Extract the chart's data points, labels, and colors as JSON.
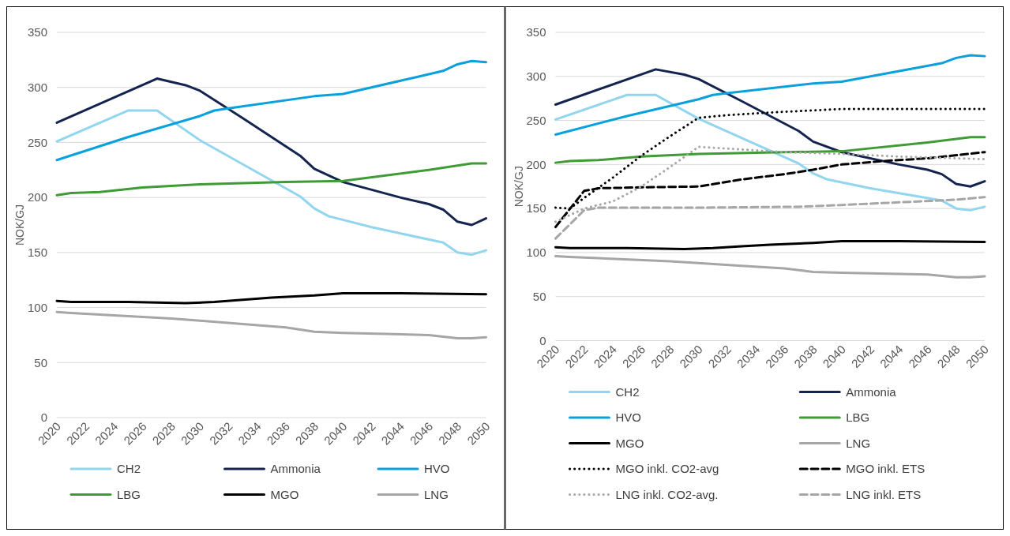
{
  "chart_data": [
    {
      "type": "line",
      "ylabel": "NOK/GJ",
      "xlim": [
        2020,
        2050
      ],
      "xticks": [
        2020,
        2022,
        2024,
        2026,
        2028,
        2030,
        2032,
        2034,
        2036,
        2038,
        2040,
        2042,
        2044,
        2046,
        2048,
        2050
      ],
      "ylim": [
        0,
        350
      ],
      "yticks": [
        0,
        50,
        100,
        150,
        200,
        250,
        300,
        350
      ],
      "grid": "y",
      "legend": "bottom",
      "series": [
        {
          "name": "CH2",
          "color": "#92d5ef",
          "x": [
            2020,
            2025,
            2027,
            2030,
            2037,
            2038,
            2039,
            2042,
            2047,
            2048,
            2049,
            2050
          ],
          "values": [
            251,
            279,
            279,
            252,
            201,
            190,
            183,
            173,
            159,
            150,
            148,
            152
          ]
        },
        {
          "name": "Ammonia",
          "color": "#14244f",
          "x": [
            2020,
            2027,
            2029,
            2030,
            2033,
            2037,
            2038,
            2040,
            2044,
            2046,
            2047,
            2048,
            2049,
            2050
          ],
          "values": [
            268,
            308,
            302,
            297,
            272,
            238,
            226,
            214,
            200,
            194,
            189,
            178,
            175,
            181
          ]
        },
        {
          "name": "HVO",
          "color": "#0aa0dc",
          "x": [
            2020,
            2025,
            2030,
            2031,
            2032,
            2038,
            2040,
            2045,
            2047,
            2048,
            2049,
            2050
          ],
          "values": [
            234,
            255,
            274,
            279,
            281,
            292,
            294,
            309,
            315,
            321,
            324,
            323
          ]
        },
        {
          "name": "LBG",
          "color": "#3f9b35",
          "x": [
            2020,
            2021,
            2023,
            2026,
            2030,
            2036,
            2040,
            2046,
            2049,
            2050
          ],
          "values": [
            202,
            204,
            205,
            209,
            212,
            214,
            215,
            225,
            231,
            231
          ]
        },
        {
          "name": "MGO",
          "color": "#000000",
          "x": [
            2020,
            2021,
            2025,
            2029,
            2031,
            2033,
            2035,
            2038,
            2040,
            2044,
            2050
          ],
          "values": [
            106,
            105,
            105,
            104,
            105,
            107,
            109,
            111,
            113,
            113,
            112
          ]
        },
        {
          "name": "LNG",
          "color": "#a6a6a6",
          "x": [
            2020,
            2021,
            2028,
            2030,
            2033,
            2036,
            2038,
            2040,
            2046,
            2048,
            2049,
            2050
          ],
          "values": [
            96,
            95,
            90,
            88,
            85,
            82,
            78,
            77,
            75,
            72,
            72,
            73
          ]
        }
      ]
    },
    {
      "type": "line",
      "ylabel": "NOK/GJ",
      "xlim": [
        2020,
        2050
      ],
      "xticks": [
        2020,
        2022,
        2024,
        2026,
        2028,
        2030,
        2032,
        2034,
        2036,
        2038,
        2040,
        2042,
        2044,
        2046,
        2048,
        2050
      ],
      "ylim": [
        0,
        350
      ],
      "yticks": [
        0,
        50,
        100,
        150,
        200,
        250,
        300,
        350
      ],
      "grid": "y",
      "legend": "bottom",
      "series": [
        {
          "name": "CH2",
          "color": "#92d5ef",
          "x": [
            2020,
            2025,
            2027,
            2030,
            2037,
            2038,
            2039,
            2042,
            2047,
            2048,
            2049,
            2050
          ],
          "values": [
            251,
            279,
            279,
            252,
            201,
            190,
            183,
            173,
            159,
            150,
            148,
            152
          ]
        },
        {
          "name": "Ammonia",
          "color": "#14244f",
          "x": [
            2020,
            2027,
            2029,
            2030,
            2033,
            2037,
            2038,
            2040,
            2044,
            2046,
            2047,
            2048,
            2049,
            2050
          ],
          "values": [
            268,
            308,
            302,
            297,
            272,
            238,
            226,
            214,
            200,
            194,
            189,
            178,
            175,
            181
          ]
        },
        {
          "name": "HVO",
          "color": "#0aa0dc",
          "x": [
            2020,
            2025,
            2030,
            2031,
            2032,
            2038,
            2040,
            2045,
            2047,
            2048,
            2049,
            2050
          ],
          "values": [
            234,
            255,
            274,
            279,
            281,
            292,
            294,
            309,
            315,
            321,
            324,
            323
          ]
        },
        {
          "name": "LBG",
          "color": "#3f9b35",
          "x": [
            2020,
            2021,
            2023,
            2026,
            2030,
            2036,
            2040,
            2046,
            2049,
            2050
          ],
          "values": [
            202,
            204,
            205,
            209,
            212,
            214,
            215,
            225,
            231,
            231
          ]
        },
        {
          "name": "MGO",
          "color": "#000000",
          "x": [
            2020,
            2021,
            2025,
            2029,
            2031,
            2033,
            2035,
            2038,
            2040,
            2044,
            2050
          ],
          "values": [
            106,
            105,
            105,
            104,
            105,
            107,
            109,
            111,
            113,
            113,
            112
          ]
        },
        {
          "name": "LNG",
          "color": "#a6a6a6",
          "x": [
            2020,
            2021,
            2028,
            2030,
            2033,
            2036,
            2038,
            2040,
            2046,
            2048,
            2049,
            2050
          ],
          "values": [
            96,
            95,
            90,
            88,
            85,
            82,
            78,
            77,
            75,
            72,
            72,
            73
          ]
        },
        {
          "name": "MGO inkl. CO2-avg",
          "color": "#000000",
          "line_style": "dotted",
          "x": [
            2020,
            2021,
            2022,
            2024,
            2026,
            2028,
            2030,
            2032,
            2035,
            2040,
            2050
          ],
          "values": [
            151,
            150,
            162,
            185,
            210,
            232,
            253,
            256,
            259,
            263,
            263
          ]
        },
        {
          "name": "MGO inkl. ETS",
          "color": "#000000",
          "line_style": "dashed",
          "x": [
            2020,
            2022,
            2023,
            2026,
            2030,
            2033,
            2036,
            2038,
            2040,
            2043,
            2046,
            2050
          ],
          "values": [
            129,
            170,
            173,
            174,
            175,
            183,
            189,
            194,
            200,
            204,
            207,
            214
          ]
        },
        {
          "name": "LNG inkl. CO2-avg.",
          "color": "#a6a6a6",
          "line_style": "dotted",
          "x": [
            2020,
            2022,
            2024,
            2026,
            2028,
            2030,
            2033,
            2036,
            2040,
            2044,
            2048,
            2050
          ],
          "values": [
            135,
            150,
            158,
            175,
            197,
            220,
            217,
            214,
            212,
            209,
            207,
            206
          ]
        },
        {
          "name": "LNG inkl. ETS",
          "color": "#a6a6a6",
          "line_style": "dashed",
          "x": [
            2020,
            2022,
            2023,
            2030,
            2037,
            2040,
            2044,
            2048,
            2050
          ],
          "values": [
            116,
            148,
            151,
            151,
            152,
            154,
            157,
            160,
            163
          ]
        }
      ]
    }
  ]
}
